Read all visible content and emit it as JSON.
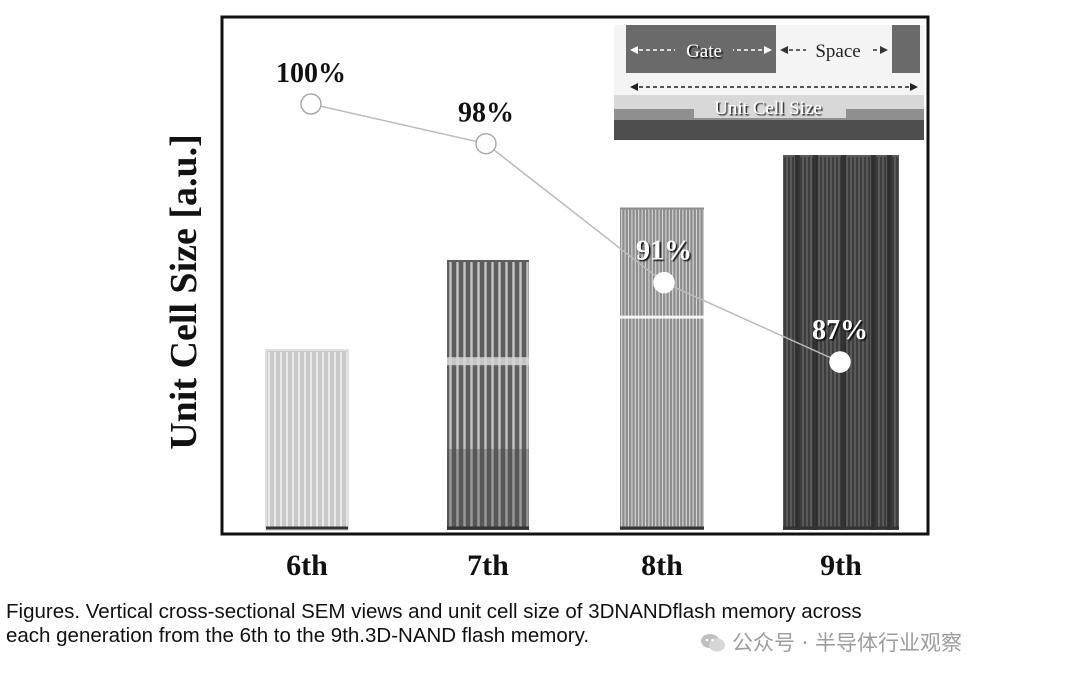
{
  "chart_data": {
    "type": "bar",
    "categories": [
      "6th",
      "7th",
      "8th",
      "9th"
    ],
    "bar_values": [
      48,
      72,
      86,
      100
    ],
    "series": [
      {
        "values": [
          100,
          98,
          91,
          87
        ],
        "labels": [
          "100%",
          "98%",
          "91%",
          "87%"
        ]
      }
    ],
    "ylabel": "Unit Cell Size [a.u.]",
    "xlabel": "",
    "title": "",
    "grid": false,
    "inset": {
      "gate_label": "Gate",
      "space_label": "Space",
      "unit_label": "Unit Cell Size"
    }
  },
  "caption": {
    "line1": "Figures. Vertical cross-sectional SEM views and unit cell size of 3DNANDflash memory across",
    "line2": "each generation from the 6th to the 9th.3D-NAND flash memory."
  },
  "watermark": {
    "text": "公众号 · 半导体行业观察"
  },
  "colors": {
    "frame": "#111111",
    "line": "#bbbbbb",
    "marker": "#ffffff"
  }
}
